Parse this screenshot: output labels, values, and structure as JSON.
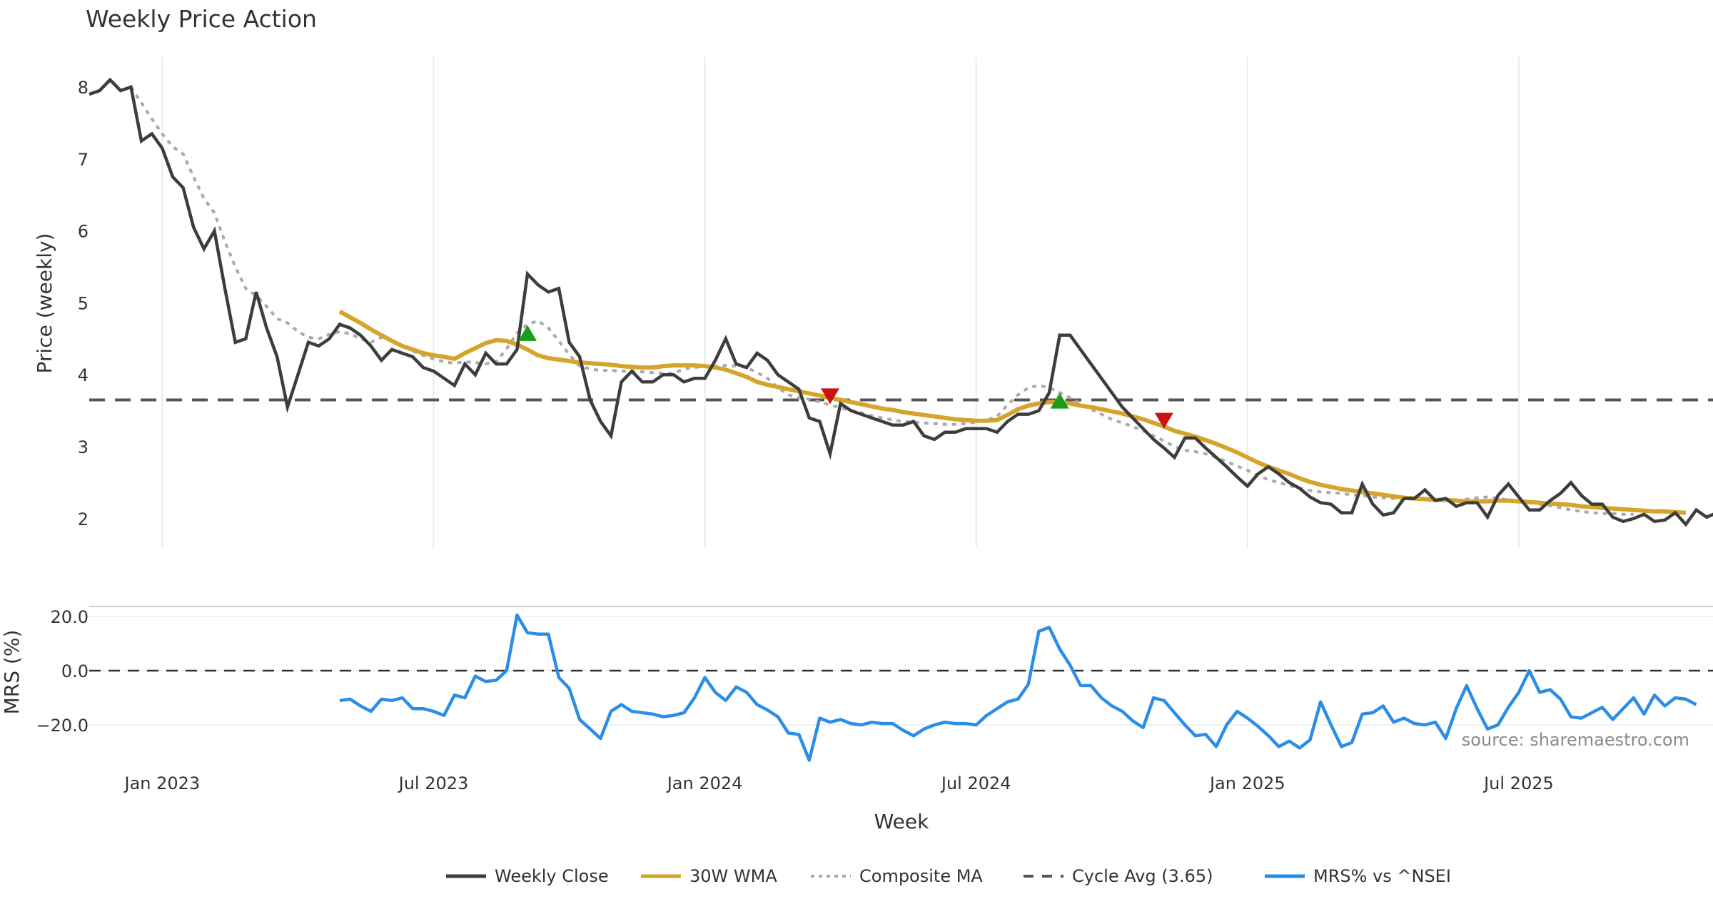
{
  "chart_data": {
    "type": "line",
    "title": "Weekly Price Action",
    "xlabel": "Week",
    "source_note": "source: sharemaestro.com",
    "x_ticks": [
      "Jan 2023",
      "Jul 2023",
      "Jan 2024",
      "Jul 2024",
      "Jan 2025",
      "Jul 2025"
    ],
    "x_tick_weeks": [
      7,
      33,
      59,
      85,
      111,
      137
    ],
    "week_count": 156,
    "price_panel": {
      "ylabel": "Price (weekly)",
      "ylim": [
        1.6,
        8.5
      ],
      "yticks": [
        2,
        3,
        4,
        5,
        6,
        7,
        8
      ],
      "cycle_avg": 3.65,
      "weekly_close": [
        7.9,
        7.95,
        8.1,
        7.95,
        8.0,
        7.25,
        7.35,
        7.15,
        6.75,
        6.6,
        6.05,
        5.75,
        6.0,
        5.2,
        4.45,
        4.5,
        5.15,
        4.65,
        4.25,
        3.55,
        4.0,
        4.45,
        4.4,
        4.5,
        4.7,
        4.65,
        4.55,
        4.4,
        4.2,
        4.35,
        4.3,
        4.25,
        4.1,
        4.05,
        3.95,
        3.85,
        4.15,
        4.0,
        4.3,
        4.15,
        4.15,
        4.35,
        5.4,
        5.25,
        5.15,
        5.2,
        4.45,
        4.25,
        3.65,
        3.35,
        3.15,
        3.9,
        4.05,
        3.9,
        3.9,
        4.0,
        4.0,
        3.9,
        3.95,
        3.95,
        4.2,
        4.5,
        4.15,
        4.1,
        4.3,
        4.2,
        4.0,
        3.9,
        3.8,
        3.4,
        3.35,
        2.9,
        3.6,
        3.5,
        3.45,
        3.4,
        3.35,
        3.3,
        3.3,
        3.35,
        3.15,
        3.1,
        3.2,
        3.2,
        3.25,
        3.25,
        3.25,
        3.2,
        3.35,
        3.45,
        3.45,
        3.5,
        3.75,
        4.55,
        4.55,
        4.35,
        4.15,
        3.95,
        3.75,
        3.55,
        3.4,
        3.25,
        3.1,
        2.98,
        2.85,
        3.12,
        3.12,
        2.98,
        2.85,
        2.72,
        2.58,
        2.45,
        2.62,
        2.72,
        2.62,
        2.5,
        2.42,
        2.3,
        2.22,
        2.2,
        2.08,
        2.08,
        2.48,
        2.2,
        2.05,
        2.08,
        2.28,
        2.28,
        2.4,
        2.25,
        2.28,
        2.17,
        2.22,
        2.22,
        2.02,
        2.32,
        2.48,
        2.3,
        2.12,
        2.12,
        2.25,
        2.35,
        2.5,
        2.32,
        2.2,
        2.2,
        2.02,
        1.96,
        2.0,
        2.06,
        1.96,
        1.98,
        2.08,
        1.92,
        2.12,
        2.02,
        2.08,
        2.04,
        2.0
      ],
      "wma_30w": {
        "start_week": 24,
        "values": [
          4.88,
          4.8,
          4.72,
          4.63,
          4.55,
          4.47,
          4.4,
          4.35,
          4.3,
          4.27,
          4.25,
          4.22,
          4.3,
          4.37,
          4.44,
          4.48,
          4.47,
          4.42,
          4.35,
          4.27,
          4.23,
          4.21,
          4.19,
          4.17,
          4.16,
          4.15,
          4.14,
          4.12,
          4.11,
          4.1,
          4.1,
          4.12,
          4.13,
          4.13,
          4.13,
          4.12,
          4.1,
          4.07,
          4.02,
          3.97,
          3.9,
          3.86,
          3.83,
          3.8,
          3.77,
          3.74,
          3.71,
          3.68,
          3.65,
          3.62,
          3.59,
          3.56,
          3.53,
          3.51,
          3.48,
          3.46,
          3.44,
          3.42,
          3.4,
          3.38,
          3.37,
          3.36,
          3.36,
          3.37,
          3.44,
          3.52,
          3.57,
          3.6,
          3.62,
          3.62,
          3.6,
          3.57,
          3.55,
          3.52,
          3.49,
          3.46,
          3.42,
          3.38,
          3.33,
          3.28,
          3.22,
          3.18,
          3.14,
          3.09,
          3.04,
          2.98,
          2.92,
          2.85,
          2.78,
          2.72,
          2.67,
          2.62,
          2.56,
          2.51,
          2.47,
          2.44,
          2.41,
          2.39,
          2.37,
          2.35,
          2.33,
          2.31,
          2.29,
          2.28,
          2.27,
          2.26,
          2.26,
          2.25,
          2.24,
          2.24,
          2.24,
          2.25,
          2.25,
          2.24,
          2.23,
          2.22,
          2.21,
          2.2,
          2.19,
          2.17,
          2.16,
          2.15,
          2.14,
          2.13,
          2.12,
          2.11,
          2.1,
          2.1,
          2.09,
          2.08
        ]
      },
      "composite_ma": {
        "start_week": 4,
        "values": [
          8.0,
          7.78,
          7.56,
          7.35,
          7.17,
          7.07,
          6.75,
          6.45,
          6.25,
          5.85,
          5.5,
          5.2,
          5.1,
          4.95,
          4.78,
          4.72,
          4.6,
          4.52,
          4.5,
          4.56,
          4.6,
          4.57,
          4.5,
          4.45,
          4.52,
          4.47,
          4.4,
          4.33,
          4.27,
          4.22,
          4.18,
          4.16,
          4.18,
          4.17,
          4.15,
          4.18,
          4.36,
          4.58,
          4.7,
          4.75,
          4.65,
          4.47,
          4.28,
          4.12,
          4.08,
          4.06,
          4.06,
          4.05,
          4.05,
          4.04,
          4.03,
          4.02,
          4.02,
          4.08,
          4.1,
          4.12,
          4.12,
          4.13,
          4.12,
          4.1,
          4.03,
          3.95,
          3.82,
          3.72,
          3.68,
          3.66,
          3.62,
          3.58,
          3.54,
          3.5,
          3.47,
          3.43,
          3.4,
          3.37,
          3.35,
          3.34,
          3.33,
          3.32,
          3.31,
          3.31,
          3.32,
          3.34,
          3.37,
          3.42,
          3.58,
          3.72,
          3.82,
          3.85,
          3.82,
          3.75,
          3.68,
          3.6,
          3.52,
          3.45,
          3.38,
          3.33,
          3.28,
          3.22,
          3.15,
          3.08,
          3.0,
          2.95,
          2.93,
          2.9,
          2.85,
          2.79,
          2.73,
          2.67,
          2.6,
          2.54,
          2.5,
          2.46,
          2.42,
          2.39,
          2.37,
          2.36,
          2.35,
          2.33,
          2.32,
          2.3,
          2.29,
          2.28,
          2.27,
          2.27,
          2.26,
          2.25,
          2.25,
          2.25,
          2.27,
          2.29,
          2.3,
          2.28,
          2.26,
          2.24,
          2.22,
          2.2,
          2.18,
          2.15,
          2.12,
          2.1,
          2.08,
          2.07,
          2.07,
          2.06,
          2.06
        ]
      },
      "signals": [
        {
          "type": "buy",
          "week": 42,
          "price": 4.56,
          "color": "#1a9e1a"
        },
        {
          "type": "sell",
          "week": 71,
          "price": 3.72,
          "color": "#cc1111"
        },
        {
          "type": "buy",
          "week": 93,
          "price": 3.62,
          "color": "#1a9e1a"
        },
        {
          "type": "sell",
          "week": 103,
          "price": 3.38,
          "color": "#cc1111"
        }
      ]
    },
    "mrs_panel": {
      "ylabel": "MRS (%)",
      "ylim": [
        -36,
        26
      ],
      "yticks": [
        20.0,
        0.0,
        -20.0
      ],
      "ytick_labels": [
        "20.0",
        "0.0",
        "−20.0"
      ],
      "start_week": 24,
      "values": [
        -11,
        -10.5,
        -13,
        -15,
        -10.5,
        -11,
        -10,
        -14,
        -14,
        -15,
        -16.5,
        -9,
        -10,
        -2,
        -4,
        -3.5,
        0,
        20.5,
        14,
        13.5,
        13.5,
        -2.5,
        -6.5,
        -18,
        -21.5,
        -25,
        -15,
        -12.5,
        -15,
        -15.5,
        -16,
        -17,
        -16.5,
        -15.5,
        -10,
        -2.5,
        -8,
        -11,
        -6,
        -8,
        -12.5,
        -14.5,
        -17,
        -23,
        -23.5,
        -33,
        -17.5,
        -19,
        -18,
        -19.5,
        -20,
        -19,
        -19.5,
        -19.5,
        -22,
        -24,
        -21.5,
        -20,
        -19,
        -19.5,
        -19.5,
        -20,
        -16.5,
        -14,
        -11.5,
        -10.5,
        -5,
        14.5,
        16,
        8,
        2,
        -5.5,
        -5.5,
        -10,
        -13,
        -15,
        -18.5,
        -21,
        -10,
        -11,
        -15.5,
        -20,
        -24,
        -23.5,
        -28,
        -20,
        -15,
        -17.5,
        -20.5,
        -24,
        -28,
        -26,
        -28.5,
        -25.5,
        -11.5,
        -20,
        -28,
        -26.5,
        -16,
        -15.5,
        -13,
        -19,
        -17.5,
        -19.5,
        -20,
        -19,
        -25,
        -14,
        -5.5,
        -14,
        -21.5,
        -20,
        -13.5,
        -8,
        0,
        -8,
        -7,
        -10.5,
        -17,
        -17.5,
        -15.5,
        -13.5,
        -18,
        -14,
        -10,
        -16,
        -9,
        -13,
        -10,
        -10.5,
        -12.5
      ]
    },
    "legend": {
      "placement": "bottom-center",
      "entries": [
        {
          "label": "Weekly Close",
          "color": "#3d3d3d",
          "style": "solid"
        },
        {
          "label": "30W WMA",
          "color": "#d4a52a",
          "style": "solid"
        },
        {
          "label": "Composite MA",
          "color": "#aaaaaa",
          "style": "dotted"
        },
        {
          "label": "Cycle Avg (3.65)",
          "color": "#555555",
          "style": "dashed"
        },
        {
          "label": "MRS% vs ^NSEI",
          "color": "#2b8de6",
          "style": "solid"
        }
      ]
    },
    "colors": {
      "close": "#3d3d3d",
      "wma": "#d4a52a",
      "composite": "#aaaaaa",
      "cycle": "#555555",
      "mrs": "#2b8de6",
      "grid": "#e8ecf0"
    }
  }
}
